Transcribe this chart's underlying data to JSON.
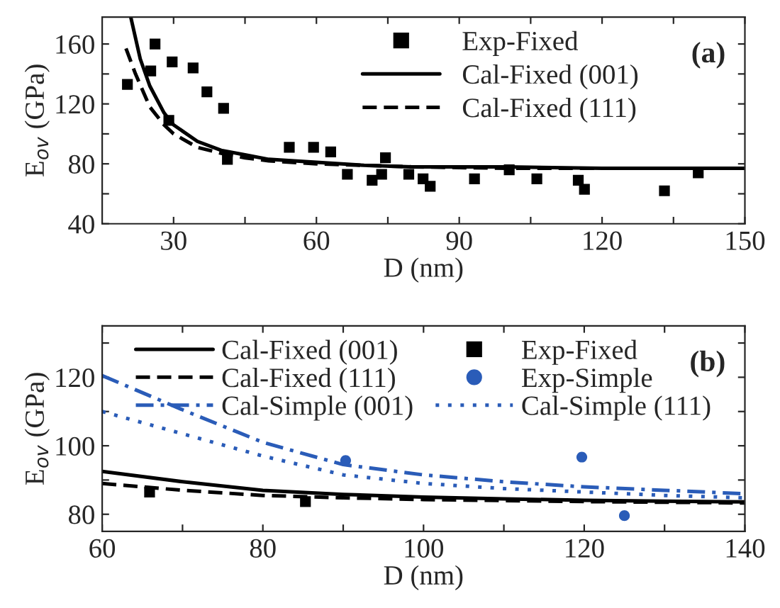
{
  "chart_data": [
    {
      "type": "line",
      "xlabel": "D (nm)",
      "ylabel": "E$_{ov}$ (GPa)",
      "xlim": [
        15,
        150
      ],
      "ylim": [
        40,
        178
      ],
      "xticks": [
        30,
        {
          "value": 45,
          "label": null
        },
        60,
        {
          "value": 75,
          "label": null
        },
        90,
        {
          "value": 105,
          "label": null
        },
        120,
        {
          "value": 135,
          "label": null
        },
        150
      ],
      "yticks": [
        40,
        {
          "value": 60,
          "label": null
        },
        80,
        {
          "value": 100,
          "label": null
        },
        120,
        {
          "value": 140,
          "label": null
        },
        160
      ],
      "legend": "top",
      "grid": false,
      "annotations": [
        "(a)"
      ],
      "series": [
        {
          "name": "Exp-Fixed",
          "type": "scatter",
          "marker": "square",
          "color": "#000000",
          "x": [
            20.3,
            25.2,
            26.1,
            29,
            29.7,
            34.1,
            37,
            40.5,
            41.3,
            54.3,
            59.4,
            63,
            66.5,
            71.7,
            73.7,
            74.5,
            79.4,
            82.4,
            83.9,
            93.2,
            100.5,
            106.3,
            115,
            116.3,
            133.1,
            140.2
          ],
          "values": [
            133,
            142,
            160,
            109,
            148,
            144,
            128,
            117,
            83,
            91,
            91,
            88,
            73,
            69,
            73,
            84,
            73,
            70,
            65,
            70,
            76,
            70,
            69,
            63,
            62,
            74
          ]
        },
        {
          "name": "Cal-Fixed (001)",
          "line_style": "solid",
          "color": "#000000",
          "x": [
            21,
            23,
            25,
            28,
            30,
            35,
            40,
            45,
            50,
            60,
            70,
            80,
            100,
            120,
            150
          ],
          "values": [
            178,
            150,
            132,
            114,
            106,
            95,
            89,
            86,
            83,
            81,
            79,
            78,
            78,
            77,
            77
          ]
        },
        {
          "name": "Cal-Fixed (111)",
          "line_style": "dashed",
          "color": "#000000",
          "x": [
            20,
            22,
            25,
            28,
            30,
            35,
            40,
            45,
            50,
            60,
            80,
            100,
            150
          ],
          "values": [
            157,
            140,
            118,
            106,
            100,
            91,
            87,
            84,
            82,
            80,
            78,
            77,
            77
          ]
        }
      ]
    },
    {
      "type": "line",
      "xlabel": "D (nm)",
      "ylabel": "E$_{ov}$ (GPa)",
      "xlim": [
        60,
        140
      ],
      "ylim": [
        75,
        135
      ],
      "xticks": [
        60,
        {
          "value": 70,
          "label": null
        },
        80,
        {
          "value": 90,
          "label": null
        },
        100,
        {
          "value": 110,
          "label": null
        },
        120,
        {
          "value": 130,
          "label": null
        },
        140
      ],
      "yticks": [
        80,
        {
          "value": 90,
          "label": null
        },
        100,
        {
          "value": 110,
          "label": null
        },
        120,
        {
          "value": 130,
          "label": null
        }
      ],
      "legend": "top",
      "grid": false,
      "annotations": [
        "(b)"
      ],
      "series": [
        {
          "name": "Cal-Fixed (001)",
          "line_style": "solid",
          "color": "#000000",
          "x": [
            60,
            70,
            80,
            90,
            100,
            110,
            120,
            130,
            140
          ],
          "values": [
            92.5,
            89.5,
            87,
            85.8,
            85,
            84.5,
            84.1,
            83.8,
            83.6
          ]
        },
        {
          "name": "Cal-Fixed (111)",
          "line_style": "dashed",
          "color": "#000000",
          "x": [
            60,
            70,
            80,
            90,
            100,
            120,
            140
          ],
          "values": [
            89,
            87,
            85.5,
            84.8,
            84.3,
            83.7,
            83.3
          ]
        },
        {
          "name": "Cal-Simple (001)",
          "line_style": "dashdot",
          "color": "#2a5cb8",
          "x": [
            60,
            70,
            80,
            90,
            100,
            110,
            120,
            130,
            140
          ],
          "values": [
            120.5,
            110.5,
            101,
            94.5,
            91.5,
            89.5,
            88,
            87,
            86
          ]
        },
        {
          "name": "Exp-Fixed",
          "type": "scatter",
          "marker": "square",
          "color": "#000000",
          "x": [
            65.9,
            85.3
          ],
          "values": [
            86.5,
            83.7
          ]
        },
        {
          "name": "Exp-Simple",
          "type": "scatter",
          "marker": "circle",
          "color": "#2a5cb8",
          "x": [
            90.3,
            119.7,
            125
          ],
          "values": [
            95.7,
            96.7,
            79.6
          ]
        },
        {
          "name": "Cal-Simple (111)",
          "line_style": "dotted",
          "color": "#2a5cb8",
          "x": [
            60,
            70,
            80,
            90,
            100,
            110,
            120,
            130,
            140
          ],
          "values": [
            110,
            103.5,
            97,
            91.5,
            89,
            87.5,
            86.5,
            85.5,
            84.8
          ]
        }
      ]
    }
  ]
}
